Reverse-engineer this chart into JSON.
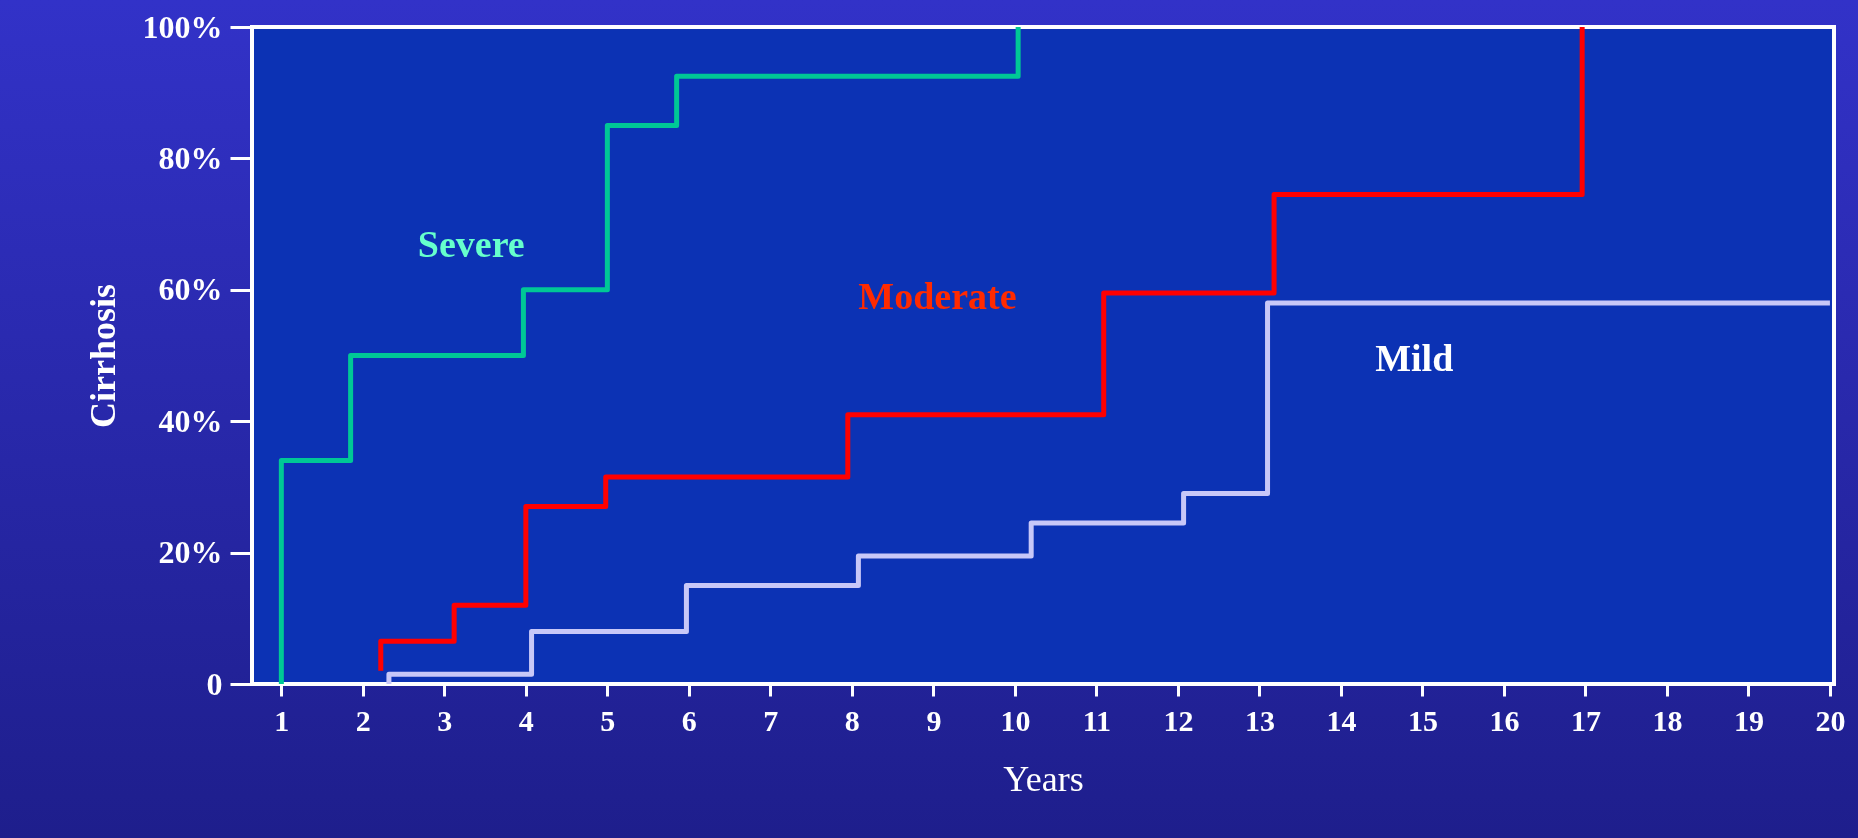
{
  "chart_data": {
    "type": "step",
    "xlabel": "Years",
    "ylabel": "Cirrhosis",
    "xlim": [
      0.64,
      20.05
    ],
    "xticks": [
      1,
      2,
      3,
      4,
      5,
      6,
      7,
      8,
      9,
      10,
      11,
      12,
      13,
      14,
      15,
      16,
      17,
      18,
      19,
      20
    ],
    "ylim": [
      0,
      100
    ],
    "yticks": [
      {
        "value": 0,
        "label": "0"
      },
      {
        "value": 20,
        "label": "20%"
      },
      {
        "value": 40,
        "label": "40%"
      },
      {
        "value": 60,
        "label": "60%"
      },
      {
        "value": 80,
        "label": "80%"
      },
      {
        "value": 100,
        "label": "100%"
      }
    ],
    "grid": false,
    "marker": "none",
    "line_style": "solid",
    "series": [
      {
        "name": "Severe",
        "color": "#00c896",
        "x": [
          1,
          1,
          1.85,
          3.97,
          5,
          5.85,
          10.04
        ],
        "values": [
          0,
          34,
          50,
          60,
          85,
          92.5,
          100
        ]
      },
      {
        "name": "Moderate",
        "color": "#ff0000",
        "x": [
          2.22,
          2.22,
          3.12,
          4,
          4.98,
          7.95,
          11.09,
          13.18,
          16.96
        ],
        "values": [
          2,
          6.5,
          12,
          27,
          31.5,
          41,
          59.5,
          74.5,
          100
        ]
      },
      {
        "name": "Mild",
        "color": "#c8c8f8",
        "x": [
          2.32,
          2.32,
          4.07,
          5.97,
          8.08,
          10.2,
          12.07,
          13.1,
          20
        ],
        "values": [
          0,
          1.5,
          8,
          15,
          19.5,
          24.5,
          29,
          58,
          58
        ]
      }
    ]
  }
}
